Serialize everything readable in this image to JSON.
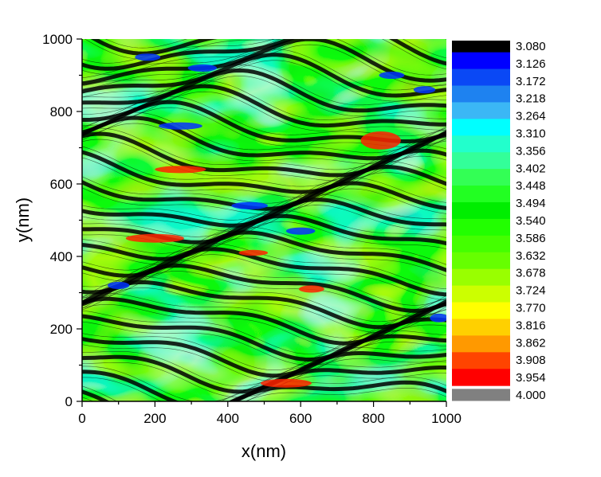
{
  "chart_data": {
    "type": "heatmap",
    "title": "",
    "xlabel": "x(nm)",
    "ylabel": "y(nm)",
    "xlim": [
      0,
      1000
    ],
    "ylim": [
      0,
      1000
    ],
    "x_ticks": [
      "0",
      "200",
      "400",
      "600",
      "800",
      "1000"
    ],
    "y_ticks": [
      "0",
      "200",
      "400",
      "600",
      "800",
      "1000"
    ],
    "contour_lines": true,
    "colorbar": {
      "position": "right",
      "min": 3.08,
      "max": 4.0,
      "levels": [
        "3.080",
        "3.126",
        "3.172",
        "3.218",
        "3.264",
        "3.310",
        "3.356",
        "3.402",
        "3.448",
        "3.494",
        "3.540",
        "3.586",
        "3.632",
        "3.678",
        "3.724",
        "3.770",
        "3.816",
        "3.862",
        "3.908",
        "3.954",
        "4.000"
      ],
      "colors": [
        "#000000",
        "#0000ff",
        "#0a48f5",
        "#1e82f0",
        "#3bb7f5",
        "#00ffff",
        "#22ffcc",
        "#33ff99",
        "#33ff55",
        "#22ff22",
        "#00ee00",
        "#22ff00",
        "#44ff00",
        "#66ff00",
        "#99ff00",
        "#ccff00",
        "#ffff00",
        "#ffd000",
        "#ff9900",
        "#ff4400",
        "#ff0000",
        "#808080"
      ]
    }
  }
}
